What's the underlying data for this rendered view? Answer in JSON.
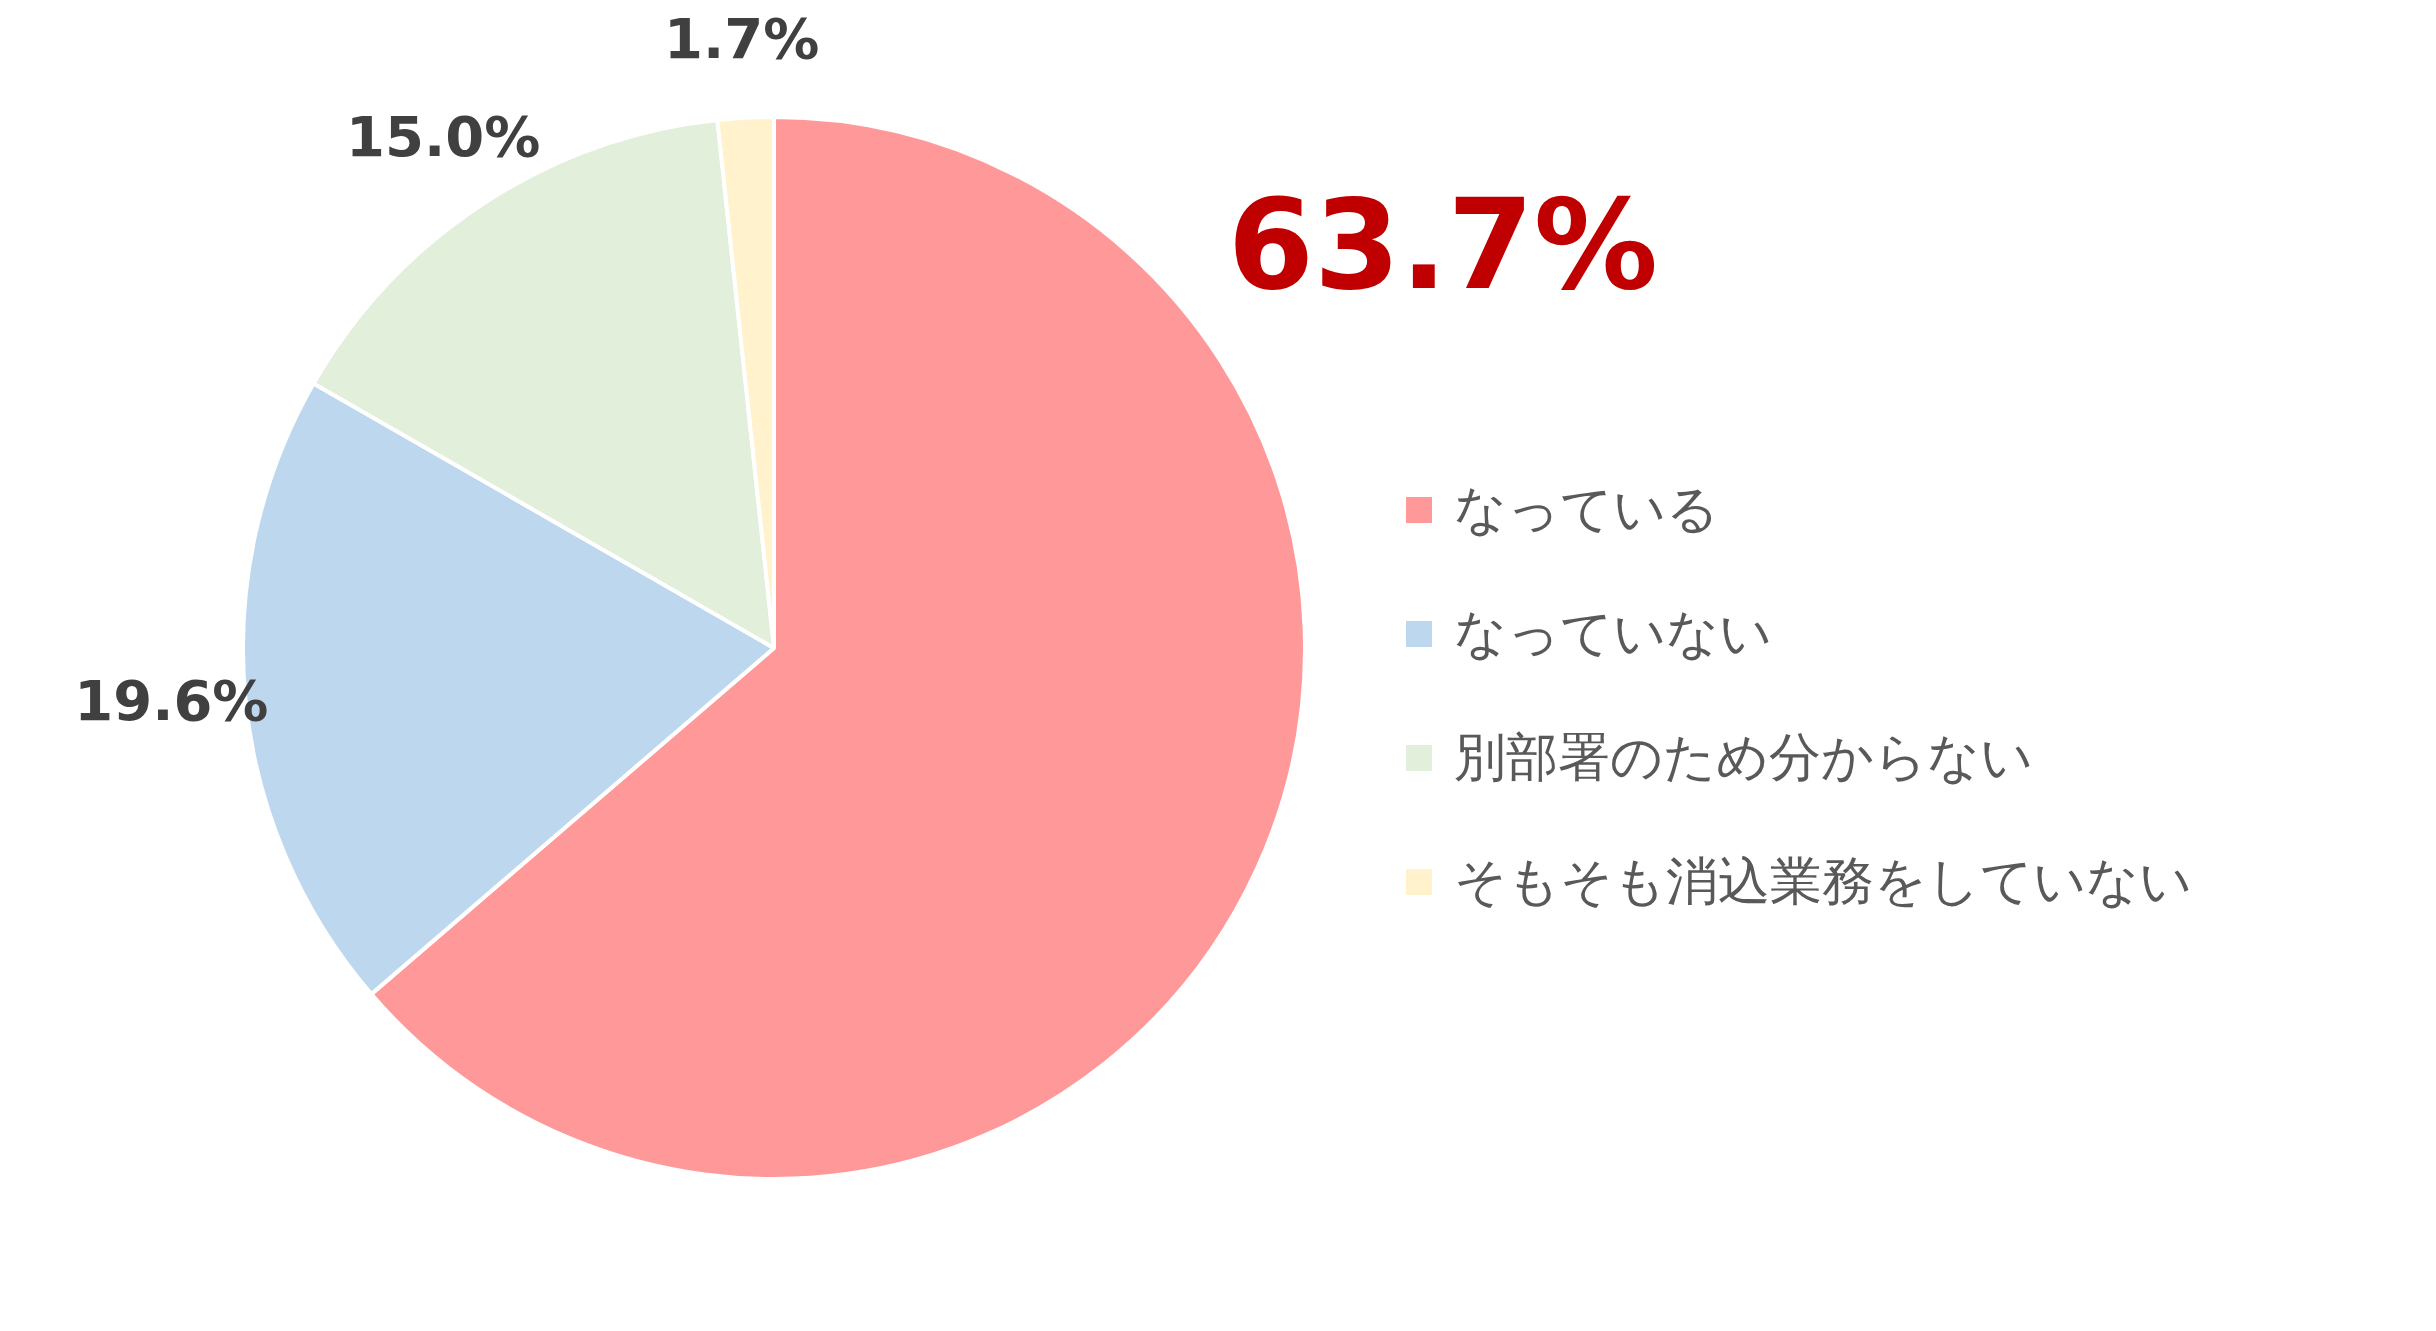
{
  "chart_data": {
    "type": "pie",
    "categories": [
      "なっている",
      "なっていない",
      "別部署のため分からない",
      "そもそも消込業務をしていない"
    ],
    "values": [
      63.7,
      19.6,
      15.0,
      1.7
    ],
    "colors": [
      "#ff9999",
      "#bdd7ee",
      "#e2efda",
      "#fff2cc"
    ],
    "value_labels": [
      "63.7%",
      "19.6%",
      "15.0%",
      "1.7%"
    ],
    "legend": "right"
  }
}
